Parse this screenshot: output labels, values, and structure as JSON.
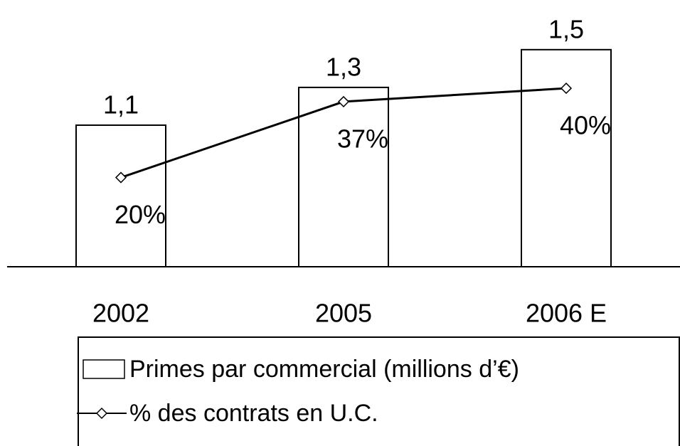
{
  "chart_data": {
    "type": "bar",
    "categories": [
      "2002",
      "2005",
      "2006 E"
    ],
    "series": [
      {
        "name": "Primes par commercial (millions d’€)",
        "type": "bar",
        "color": "#ffffff",
        "values": [
          1.1,
          1.3,
          1.5
        ],
        "value_labels": [
          "1,1",
          "1,3",
          "1,5"
        ]
      },
      {
        "name": "% des contrats en U.C.",
        "type": "line",
        "axis": "y2",
        "color": "#000000",
        "values": [
          20,
          37,
          40
        ],
        "value_labels": [
          "20%",
          "37%",
          "40%"
        ]
      }
    ],
    "ylim": [
      0.35,
      1.65
    ],
    "y2lim": [
      0,
      55
    ],
    "grid": false,
    "legend": "bottom"
  }
}
